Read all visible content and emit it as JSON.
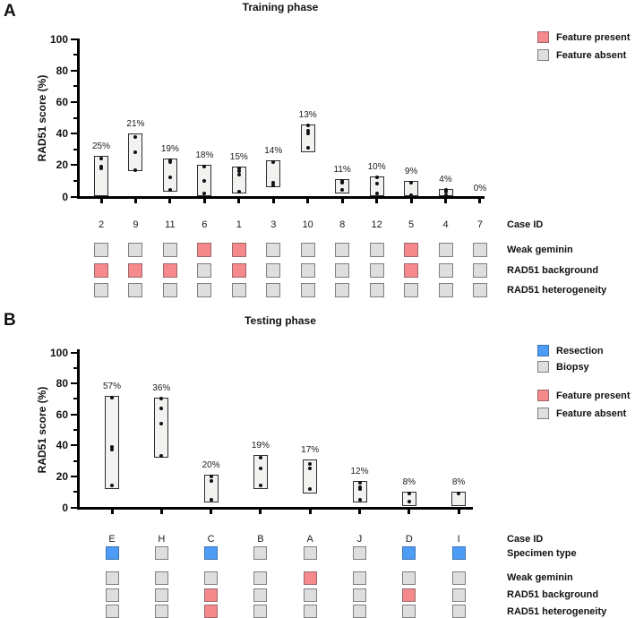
{
  "colors": {
    "feature_present": "#F5898C",
    "feature_present_border": "#9c686b",
    "feature_absent": "#DEDEDE",
    "feature_absent_border": "#7f7f7f",
    "resection": "#4D9CF6",
    "resection_border": "#3f74b3",
    "biopsy": "#DEDEDE",
    "bar_fill": "#F2F2F0",
    "dot": "#111111",
    "axis": "#000000"
  },
  "chart_data": [
    {
      "type": "bar",
      "panel_letter": "A",
      "title": "Training phase",
      "ylabel": "RAD51 score (%)",
      "row_header": "Case ID",
      "ylim": [
        0,
        100
      ],
      "y_major_ticks": [
        0,
        20,
        40,
        60,
        80,
        100
      ],
      "y_minor_ticks": [
        10,
        30,
        50,
        70,
        90
      ],
      "bar_style": "floating min-max box with replicate dots",
      "categories": [
        "2",
        "9",
        "11",
        "6",
        "1",
        "3",
        "10",
        "8",
        "12",
        "5",
        "4",
        "7"
      ],
      "feature_rows": [
        "Weak geminin",
        "RAD51 background",
        "RAD51 heterogeneity"
      ],
      "legend": [
        {
          "label": "Feature present",
          "type": "present"
        },
        {
          "label": "Feature absent",
          "type": "absent"
        }
      ],
      "cases": [
        {
          "id": "2",
          "pct": "25%",
          "range": [
            0,
            26
          ],
          "dots": [
            24,
            19,
            18
          ],
          "features": [
            "absent",
            "present",
            "absent"
          ]
        },
        {
          "id": "9",
          "pct": "21%",
          "range": [
            16,
            40
          ],
          "dots": [
            38,
            28,
            17
          ],
          "features": [
            "absent",
            "present",
            "absent"
          ]
        },
        {
          "id": "11",
          "pct": "19%",
          "range": [
            3,
            24
          ],
          "dots": [
            23,
            22,
            12,
            4
          ],
          "features": [
            "absent",
            "present",
            "absent"
          ]
        },
        {
          "id": "6",
          "pct": "18%",
          "range": [
            0,
            20
          ],
          "dots": [
            19,
            10,
            2
          ],
          "features": [
            "present",
            "absent",
            "absent"
          ]
        },
        {
          "id": "1",
          "pct": "15%",
          "range": [
            2,
            19
          ],
          "dots": [
            18,
            16,
            14,
            3
          ],
          "features": [
            "present",
            "present",
            "absent"
          ]
        },
        {
          "id": "3",
          "pct": "14%",
          "range": [
            6,
            23
          ],
          "dots": [
            22,
            9,
            7
          ],
          "features": [
            "absent",
            "absent",
            "absent"
          ]
        },
        {
          "id": "10",
          "pct": "13%",
          "range": [
            28,
            46
          ],
          "dots": [
            45,
            42,
            40,
            31
          ],
          "features": [
            "absent",
            "absent",
            "absent"
          ]
        },
        {
          "id": "8",
          "pct": "11%",
          "range": [
            2,
            11
          ],
          "dots": [
            10,
            9,
            4
          ],
          "features": [
            "absent",
            "absent",
            "absent"
          ]
        },
        {
          "id": "12",
          "pct": "10%",
          "range": [
            0,
            13
          ],
          "dots": [
            12,
            8,
            2
          ],
          "features": [
            "absent",
            "absent",
            "absent"
          ]
        },
        {
          "id": "5",
          "pct": "9%",
          "range": [
            0,
            10
          ],
          "dots": [
            9,
            1
          ],
          "features": [
            "present",
            "present",
            "absent"
          ]
        },
        {
          "id": "4",
          "pct": "4%",
          "range": [
            0,
            5
          ],
          "dots": [
            4,
            3,
            1
          ],
          "features": [
            "absent",
            "absent",
            "absent"
          ]
        },
        {
          "id": "7",
          "pct": "0%",
          "range": null,
          "dots": [],
          "features": [
            "absent",
            "absent",
            "absent"
          ]
        }
      ]
    },
    {
      "type": "bar",
      "panel_letter": "B",
      "title": "Testing phase",
      "ylabel": "RAD51 score (%)",
      "row_header": "Case ID",
      "ylim": [
        0,
        100
      ],
      "y_major_ticks": [
        0,
        20,
        40,
        60,
        80,
        100
      ],
      "y_minor_ticks": [
        10,
        30,
        50,
        70,
        90
      ],
      "bar_style": "floating min-max box with replicate dots",
      "categories": [
        "E",
        "H",
        "C",
        "B",
        "A",
        "J",
        "D",
        "I"
      ],
      "feature_rows": [
        "Specimen type",
        "Weak geminin",
        "RAD51 background",
        "RAD51 heterogeneity"
      ],
      "legend": [
        {
          "label": "Resection",
          "type": "resection"
        },
        {
          "label": "Biopsy",
          "type": "biopsy"
        },
        {
          "label": "Feature present",
          "type": "present"
        },
        {
          "label": "Feature absent",
          "type": "absent"
        }
      ],
      "cases": [
        {
          "id": "E",
          "pct": "57%",
          "range": [
            12,
            72
          ],
          "dots": [
            71,
            39,
            37,
            14
          ],
          "features": [
            "resection",
            "absent",
            "absent",
            "absent"
          ]
        },
        {
          "id": "H",
          "pct": "36%",
          "range": [
            32,
            71
          ],
          "dots": [
            70,
            64,
            54,
            33
          ],
          "features": [
            "biopsy",
            "absent",
            "absent",
            "absent"
          ]
        },
        {
          "id": "C",
          "pct": "20%",
          "range": [
            3,
            21
          ],
          "dots": [
            20,
            17,
            5
          ],
          "features": [
            "resection",
            "absent",
            "present",
            "present"
          ]
        },
        {
          "id": "B",
          "pct": "19%",
          "range": [
            12,
            34
          ],
          "dots": [
            32,
            25,
            14
          ],
          "features": [
            "biopsy",
            "absent",
            "absent",
            "absent"
          ]
        },
        {
          "id": "A",
          "pct": "17%",
          "range": [
            9,
            31
          ],
          "dots": [
            28,
            25,
            12
          ],
          "features": [
            "biopsy",
            "present",
            "absent",
            "absent"
          ]
        },
        {
          "id": "J",
          "pct": "12%",
          "range": [
            3,
            17
          ],
          "dots": [
            16,
            13,
            12,
            5
          ],
          "features": [
            "biopsy",
            "absent",
            "absent",
            "absent"
          ]
        },
        {
          "id": "D",
          "pct": "8%",
          "range": [
            1,
            10
          ],
          "dots": [
            9,
            4
          ],
          "features": [
            "resection",
            "absent",
            "present",
            "absent"
          ]
        },
        {
          "id": "I",
          "pct": "8%",
          "range": [
            1,
            10
          ],
          "dots": [
            9
          ],
          "features": [
            "resection",
            "absent",
            "absent",
            "absent"
          ]
        }
      ]
    }
  ]
}
